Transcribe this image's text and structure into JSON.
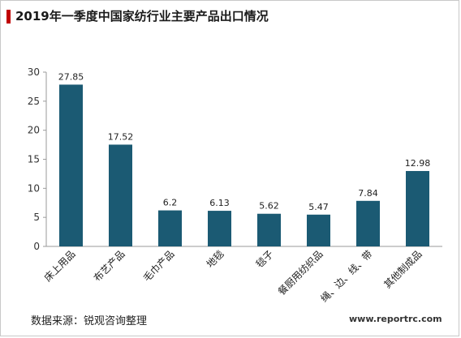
{
  "title": "2019年一季度中国家纺行业主要产品出口情况",
  "source": "数据来源：锐观咨询整理",
  "site": "www.reportrc.com",
  "colors": {
    "bar": "#1b5a73",
    "accent": "#c00000",
    "axis": "#9a9a9a"
  },
  "chart_data": {
    "type": "bar",
    "categories": [
      "床上用品",
      "布艺产品",
      "毛巾产品",
      "地毯",
      "毯子",
      "餐厨用纺织品",
      "绳、边、线、带",
      "其他制成品"
    ],
    "values": [
      27.85,
      17.52,
      6.2,
      6.13,
      5.62,
      5.47,
      7.84,
      12.98
    ],
    "value_labels": [
      "27.85",
      "17.52",
      "6.2",
      "6.13",
      "5.62",
      "5.47",
      "7.84",
      "12.98"
    ],
    "yticks": [
      "0",
      "5",
      "10",
      "15",
      "20",
      "25",
      "30"
    ],
    "ylim": [
      0,
      30
    ],
    "grid": false,
    "legend": "none"
  }
}
